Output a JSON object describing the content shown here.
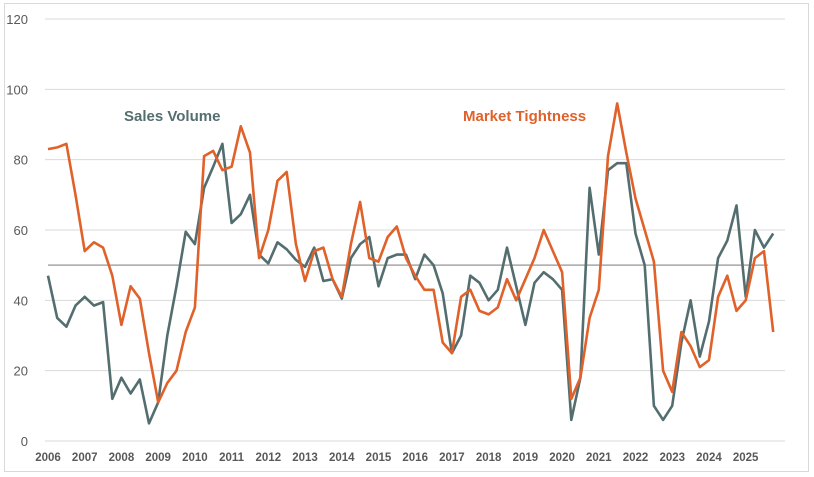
{
  "chart_data": {
    "type": "line",
    "title": "",
    "xlabel": "",
    "ylabel": "",
    "ylim": [
      0,
      120
    ],
    "yticks": [
      0,
      20,
      40,
      60,
      80,
      100,
      120
    ],
    "x_tick_labels": [
      "2006",
      "2007",
      "2008",
      "2009",
      "2010",
      "2011",
      "2012",
      "2013",
      "2014",
      "2015",
      "2016",
      "2017",
      "2018",
      "2019",
      "2020",
      "2021",
      "2022",
      "2023",
      "2024",
      "2025"
    ],
    "x_frequency": "quarterly, 2006 Q1 to 2025 Q4",
    "grid": "horizontal",
    "reference_line": 50,
    "series": [
      {
        "name": "Sales Volume",
        "color": "#546E70",
        "values": [
          47,
          35,
          32.5,
          38.5,
          41,
          38.5,
          39.5,
          12,
          18,
          13.5,
          17.5,
          5,
          11,
          30,
          44,
          59.5,
          56,
          72,
          78,
          84.5,
          62,
          64.5,
          70,
          53,
          50.5,
          56.5,
          54.5,
          51.5,
          49.5,
          55,
          45.5,
          46,
          40.5,
          52,
          56,
          58,
          44,
          52,
          53,
          53,
          46,
          53,
          50,
          42,
          25,
          30,
          47,
          45,
          40,
          43,
          55,
          44,
          33,
          45,
          48,
          46,
          43,
          6,
          18,
          72,
          53,
          77,
          79,
          79,
          59,
          50,
          10,
          6,
          10,
          28,
          40,
          24,
          34,
          52,
          57,
          67,
          41,
          60,
          55,
          59
        ]
      },
      {
        "name": "Market Tightness",
        "color": "#E0612A",
        "values": [
          83,
          83.5,
          84.5,
          70,
          54,
          56.5,
          55,
          47,
          33,
          44,
          40.5,
          25,
          11,
          16.5,
          20,
          31,
          38,
          81,
          82.5,
          77,
          78,
          89.5,
          82,
          52,
          60,
          74,
          76.5,
          56,
          45.5,
          54,
          55,
          46,
          41,
          56,
          68,
          52,
          51,
          58,
          61,
          52,
          47,
          43,
          43,
          28,
          25,
          41,
          43,
          37,
          36,
          38,
          46,
          40,
          46,
          52,
          60,
          54,
          48,
          12,
          18,
          35,
          43,
          81,
          96,
          82,
          69,
          60,
          51,
          20,
          14,
          31,
          27,
          21,
          23,
          41,
          47,
          37,
          40,
          52,
          54,
          31
        ]
      }
    ]
  },
  "colors": {
    "grid": "#d9d9d9",
    "reference_line": "#a6a6a6"
  }
}
